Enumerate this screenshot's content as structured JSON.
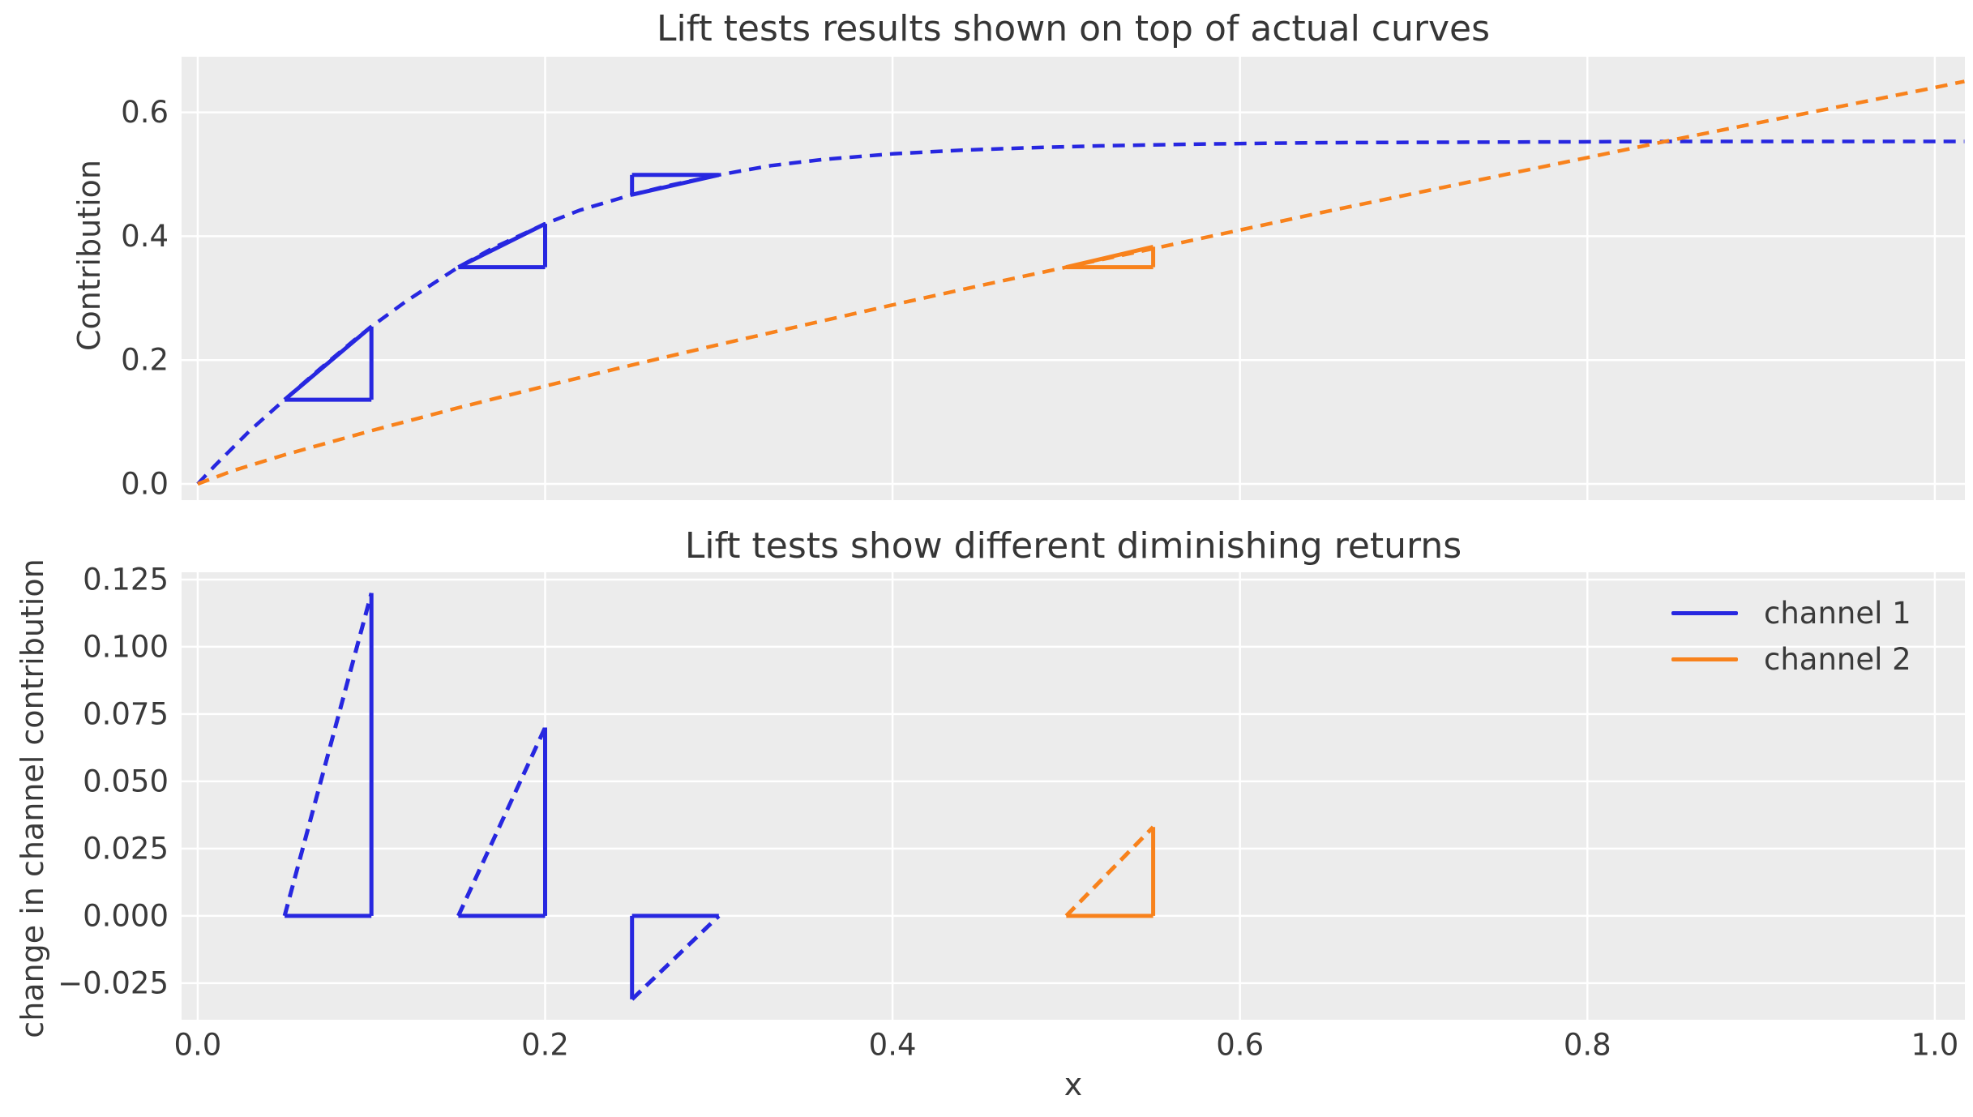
{
  "figure": {
    "background": "#ffffff",
    "axes_background": "#ececec",
    "grid_color": "#ffffff",
    "text_color": "#3a3a3a",
    "title_color": "#363636",
    "channel_1_color": "#2727e0",
    "channel_2_color": "#f8821c"
  },
  "chart_data": [
    {
      "type": "line",
      "title": "Lift tests results shown on top of actual curves",
      "ylabel": "Contribution",
      "xlabel": "",
      "grid": true,
      "xlim": [
        -0.0093,
        1.0173
      ],
      "ylim": [
        -0.0262,
        0.6898
      ],
      "xticks": {
        "values": [
          0.0,
          0.2,
          0.4,
          0.6,
          0.8,
          1.0
        ],
        "labels": []
      },
      "yticks": {
        "values": [
          0.0,
          0.2,
          0.4,
          0.6
        ],
        "labels": [
          "0.0",
          "0.2",
          "0.4",
          "0.6"
        ]
      },
      "series": [
        {
          "name": "channel 1",
          "color": "#2727e0",
          "style": "dashed",
          "x": [
            0,
            0.01,
            0.03,
            0.05,
            0.07,
            0.09,
            0.1,
            0.12,
            0.15,
            0.17,
            0.2,
            0.22,
            0.25,
            0.27,
            0.3,
            0.33,
            0.36,
            0.4,
            0.44,
            0.48,
            0.52,
            0.58,
            0.65,
            0.75,
            0.85,
            0.95,
            1.017
          ],
          "y": [
            0,
            0.03,
            0.086,
            0.136,
            0.185,
            0.232,
            0.254,
            0.295,
            0.35,
            0.381,
            0.42,
            0.442,
            0.467,
            0.481,
            0.499,
            0.514,
            0.524,
            0.533,
            0.539,
            0.543,
            0.546,
            0.549,
            0.551,
            0.552,
            0.553,
            0.553,
            0.553
          ]
        },
        {
          "name": "channel 2",
          "color": "#f8821c",
          "style": "dashed",
          "x": [
            0,
            0.02,
            0.05,
            0.1,
            0.15,
            0.2,
            0.25,
            0.3,
            0.35,
            0.4,
            0.45,
            0.5,
            0.55,
            0.6,
            0.65,
            0.7,
            0.75,
            0.8,
            0.85,
            0.9,
            0.95,
            1.0,
            1.017
          ],
          "y": [
            0,
            0.021,
            0.047,
            0.086,
            0.123,
            0.158,
            0.192,
            0.225,
            0.257,
            0.289,
            0.32,
            0.35,
            0.38,
            0.41,
            0.44,
            0.469,
            0.498,
            0.527,
            0.556,
            0.584,
            0.612,
            0.64,
            0.65
          ]
        }
      ],
      "lift_tests": [
        {
          "channel": "channel 1",
          "x_start": 0.05,
          "x_end": 0.1,
          "y_start": 0.136,
          "y_end": 0.254,
          "right_angle": "bottom-right"
        },
        {
          "channel": "channel 1",
          "x_start": 0.15,
          "x_end": 0.2,
          "y_start": 0.35,
          "y_end": 0.42,
          "right_angle": "bottom-right"
        },
        {
          "channel": "channel 1",
          "x_start": 0.25,
          "x_end": 0.3,
          "y_start": 0.467,
          "y_end": 0.499,
          "right_angle": "top-left"
        },
        {
          "channel": "channel 2",
          "x_start": 0.5,
          "x_end": 0.55,
          "y_start": 0.35,
          "y_end": 0.383,
          "right_angle": "bottom-right"
        }
      ]
    },
    {
      "type": "line",
      "title": "Lift tests show different diminishing returns",
      "ylabel": "change in channel contribution",
      "xlabel": "x",
      "grid": true,
      "xlim": [
        -0.0093,
        1.0173
      ],
      "ylim": [
        -0.0386,
        0.1277
      ],
      "xticks": {
        "values": [
          0.0,
          0.2,
          0.4,
          0.6,
          0.8,
          1.0
        ],
        "labels": [
          "0.0",
          "0.2",
          "0.4",
          "0.6",
          "0.8",
          "1.0"
        ]
      },
      "yticks": {
        "values": [
          0.125,
          0.1,
          0.075,
          0.05,
          0.025,
          0.0,
          -0.025
        ],
        "labels": [
          "0.125",
          "0.100",
          "0.075",
          "0.050",
          "0.025",
          "0.000",
          "−0.025"
        ]
      },
      "legend": {
        "position": "upper right",
        "entries": [
          {
            "label": "channel 1",
            "color": "#2727e0"
          },
          {
            "label": "channel 2",
            "color": "#f8821c"
          }
        ]
      },
      "triangles": [
        {
          "channel": "channel 1",
          "x_start": 0.05,
          "x_end": 0.1,
          "lift": 0.12,
          "vertical_side": "right"
        },
        {
          "channel": "channel 1",
          "x_start": 0.15,
          "x_end": 0.2,
          "lift": 0.07,
          "vertical_side": "right"
        },
        {
          "channel": "channel 1",
          "x_start": 0.25,
          "x_end": 0.3,
          "lift": -0.031,
          "vertical_side": "left"
        },
        {
          "channel": "channel 2",
          "x_start": 0.5,
          "x_end": 0.55,
          "lift": 0.033,
          "vertical_side": "right"
        }
      ]
    }
  ]
}
